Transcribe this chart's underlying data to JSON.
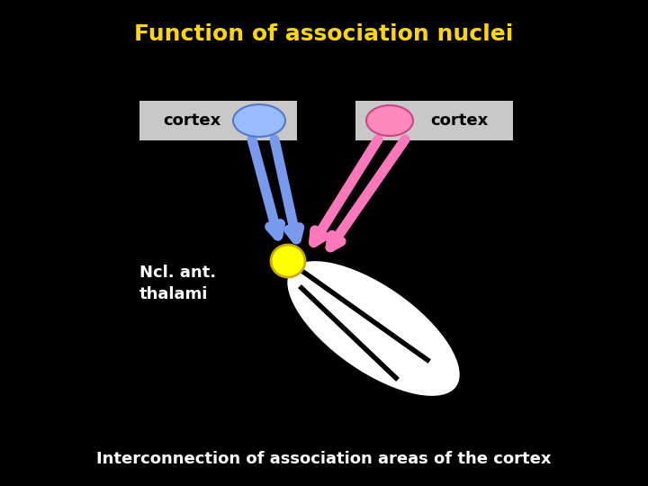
{
  "title": "Function of association nuclei",
  "title_color": "#FFD700",
  "title_fontsize": 18,
  "subtitle": "Interconnection of association areas of the cortex",
  "subtitle_color": "#FFFFFF",
  "subtitle_fontsize": 13,
  "background_color": "#000000",
  "label_cortex": "cortex",
  "label_ncl": "Ncl. ant.\nthalami",
  "box_color": "#C8C8C8",
  "blue_ellipse_color": "#99BBFF",
  "blue_ellipse_edge": "#5577CC",
  "pink_ellipse_color": "#FF88BB",
  "pink_ellipse_edge": "#CC4488",
  "yellow_dot_color": "#FFFF00",
  "yellow_dot_edge": "#CCAA00",
  "arrow_blue_color": "#7799EE",
  "arrow_pink_color": "#FF77BB",
  "thalamus_color": "#FFFFFF",
  "thalamus_edge": "#000000"
}
